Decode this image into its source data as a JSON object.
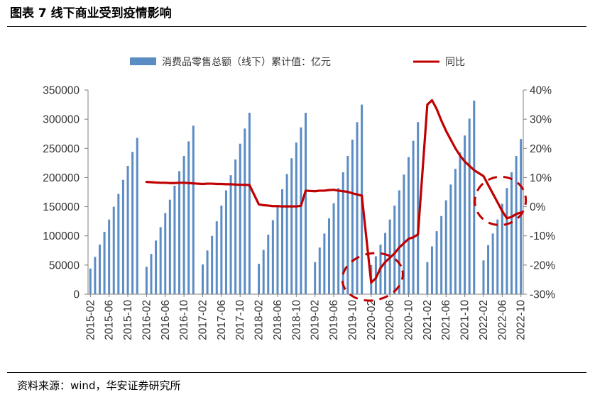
{
  "figure": {
    "title": "图表 7 线下商业受到疫情影响",
    "source": "资料来源：wind，华安证券研究所"
  },
  "chart_data": {
    "type": "bar",
    "title": "",
    "xlabel": "",
    "ylabel": "",
    "categories": [
      "2015-02",
      "2015-03",
      "2015-04",
      "2015-05",
      "2015-06",
      "2015-07",
      "2015-08",
      "2015-09",
      "2015-10",
      "2015-11",
      "2015-12",
      "2016-01",
      "2016-02",
      "2016-03",
      "2016-04",
      "2016-05",
      "2016-06",
      "2016-07",
      "2016-08",
      "2016-09",
      "2016-10",
      "2016-11",
      "2016-12",
      "2017-01",
      "2017-02",
      "2017-03",
      "2017-04",
      "2017-05",
      "2017-06",
      "2017-07",
      "2017-08",
      "2017-09",
      "2017-10",
      "2017-11",
      "2017-12",
      "2018-01",
      "2018-02",
      "2018-03",
      "2018-04",
      "2018-05",
      "2018-06",
      "2018-07",
      "2018-08",
      "2018-09",
      "2018-10",
      "2018-11",
      "2018-12",
      "2019-01",
      "2019-02",
      "2019-03",
      "2019-04",
      "2019-05",
      "2019-06",
      "2019-07",
      "2019-08",
      "2019-09",
      "2019-10",
      "2019-11",
      "2019-12",
      "2020-01",
      "2020-02",
      "2020-03",
      "2020-04",
      "2020-05",
      "2020-06",
      "2020-07",
      "2020-08",
      "2020-09",
      "2020-10",
      "2020-11",
      "2020-12",
      "2021-01",
      "2021-02",
      "2021-03",
      "2021-04",
      "2021-05",
      "2021-06",
      "2021-07",
      "2021-08",
      "2021-09",
      "2021-10",
      "2021-11",
      "2021-12",
      "2022-01",
      "2022-02",
      "2022-03",
      "2022-04",
      "2022-05",
      "2022-06",
      "2022-07",
      "2022-08",
      "2022-09",
      "2022-10"
    ],
    "tick_labels": [
      "2015-02",
      "2015-06",
      "2015-10",
      "2016-02",
      "2016-06",
      "2016-10",
      "2017-02",
      "2017-06",
      "2017-10",
      "2018-02",
      "2018-06",
      "2018-10",
      "2019-02",
      "2019-06",
      "2019-10",
      "2020-02",
      "2020-06",
      "2020-10",
      "2021-02",
      "2021-06",
      "2021-10",
      "2022-02",
      "2022-06",
      "2022-10"
    ],
    "series": [
      {
        "name": "消费品零售总额（线下）累计值：亿元",
        "type": "bar",
        "axis": "left",
        "color": "#5b8cc4",
        "values": [
          44000,
          64000,
          85000,
          107000,
          128000,
          150000,
          172000,
          196000,
          220000,
          244000,
          268000,
          null,
          47000,
          69000,
          92000,
          115000,
          139000,
          162000,
          186000,
          211000,
          237000,
          262000,
          289000,
          null,
          51000,
          75000,
          100000,
          125000,
          152000,
          178000,
          204000,
          231000,
          258000,
          284000,
          311000,
          null,
          52000,
          76000,
          102000,
          127000,
          153000,
          180000,
          206000,
          233000,
          260000,
          286000,
          311000,
          null,
          55000,
          80000,
          104000,
          130000,
          156000,
          182000,
          209000,
          237000,
          265000,
          295000,
          325000,
          null,
          50000,
          65000,
          85000,
          105000,
          128000,
          152000,
          178000,
          205000,
          235000,
          263000,
          295000,
          null,
          55000,
          82000,
          108000,
          134000,
          161000,
          188000,
          215000,
          243000,
          272000,
          301000,
          332000,
          null,
          58000,
          84000,
          104000,
          128000,
          155000,
          182000,
          209000,
          237000,
          266000
        ]
      },
      {
        "name": "同比",
        "type": "line",
        "axis": "right",
        "color": "#c00000",
        "values": [
          null,
          null,
          null,
          null,
          null,
          null,
          null,
          null,
          null,
          null,
          null,
          null,
          8.5,
          8.4,
          8.3,
          8.2,
          8.2,
          8.1,
          8.1,
          8.2,
          8.2,
          8.1,
          8.0,
          null,
          7.8,
          7.9,
          7.9,
          7.8,
          7.8,
          7.7,
          7.7,
          7.6,
          7.5,
          7.5,
          7.4,
          null,
          0.8,
          0.5,
          0.4,
          0.2,
          0.2,
          0.1,
          0.1,
          0.1,
          0.1,
          0.3,
          5.5,
          null,
          5.3,
          5.5,
          5.5,
          5.7,
          5.8,
          5.5,
          5.3,
          5.1,
          4.6,
          4.2,
          3.8,
          null,
          -26.0,
          -24.5,
          -21.0,
          -19.0,
          -17.5,
          -16.0,
          -14.0,
          -12.5,
          -11.0,
          -10.5,
          -9.5,
          null,
          35.0,
          36.5,
          33.5,
          29.5,
          26.0,
          23.0,
          20.0,
          17.5,
          15.5,
          14.0,
          12.5,
          null,
          10.5,
          7.5,
          4.5,
          1.5,
          -1.5,
          -4.0,
          -3.5,
          -2.5,
          -2.0
        ]
      }
    ],
    "y_left": {
      "min": 0,
      "max": 350000,
      "ticks": [
        0,
        50000,
        100000,
        150000,
        200000,
        250000,
        300000,
        350000
      ],
      "tick_labels": [
        "0",
        "50000",
        "100000",
        "150000",
        "200000",
        "250000",
        "300000",
        "350000"
      ]
    },
    "y_right": {
      "min": -30,
      "max": 40,
      "ticks": [
        -30,
        -20,
        -10,
        0,
        10,
        20,
        30,
        40
      ],
      "tick_labels": [
        "-30%",
        "-20%",
        "-10%",
        "0%",
        "10%",
        "20%",
        "30%",
        "40%"
      ]
    },
    "legend_position": "top-center",
    "grid": false,
    "annotations": [
      {
        "shape": "dashed-ellipse",
        "color": "#c00000",
        "around": "2020-02"
      },
      {
        "shape": "dashed-ellipse",
        "color": "#c00000",
        "around": "2022-05"
      }
    ]
  }
}
